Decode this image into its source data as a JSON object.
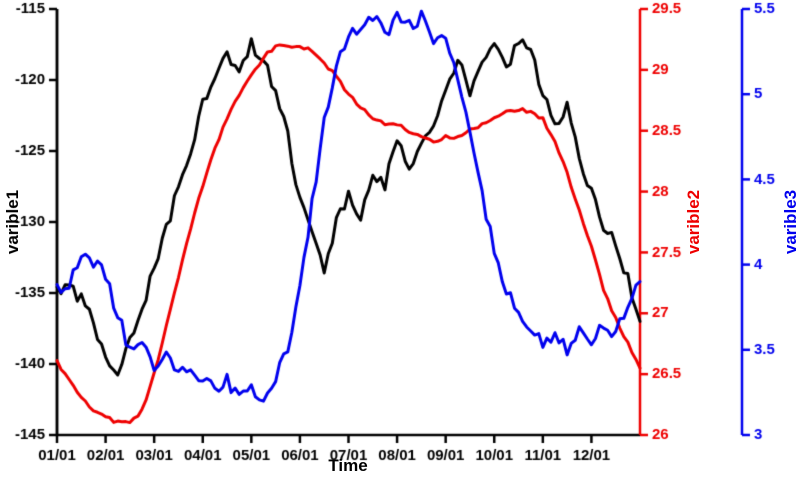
{
  "labels": {
    "y_left": "varible1",
    "y_right1": "varible2",
    "y_right2": "varible3",
    "x": "Time"
  },
  "chart_data": {
    "type": "line",
    "title": "",
    "xlabel": "Time",
    "x_ticks": [
      "01/01",
      "02/01",
      "03/01",
      "04/01",
      "05/01",
      "06/01",
      "07/01",
      "08/01",
      "09/01",
      "10/01",
      "11/01",
      "12/01"
    ],
    "x_range_months": [
      0,
      12
    ],
    "grid": false,
    "legend": "none",
    "series": [
      {
        "name": "varible1",
        "axis": "left",
        "color": "#000000",
        "linewidth": 3,
        "ylim": [
          -145,
          -115
        ],
        "tick_labels": [
          "-145",
          "-140",
          "-135",
          "-130",
          "-125",
          "-120",
          "-115"
        ],
        "tick_values": [
          -145,
          -140,
          -135,
          -130,
          -125,
          -120,
          -115
        ],
        "noise": 0.45,
        "values": [
          -135.0,
          -134.5,
          -135.5,
          -137.0,
          -139.5,
          -140.5,
          -138.0,
          -136.5,
          -133.0,
          -130.5,
          -127.5,
          -125.5,
          -121.5,
          -120.0,
          -118.0,
          -119.5,
          -117.5,
          -118.5,
          -121.0,
          -124.0,
          -128.5,
          -131.0,
          -133.5,
          -130.0,
          -128.0,
          -129.5,
          -126.5,
          -127.5,
          -124.0,
          -126.0,
          -124.5,
          -123.0,
          -120.5,
          -118.5,
          -121.0,
          -119.0,
          -117.5,
          -119.5,
          -117.0,
          -118.0,
          -121.0,
          -123.0,
          -122.0,
          -125.5,
          -128.0,
          -130.5,
          -131.5,
          -134.0,
          -137.0
        ]
      },
      {
        "name": "varible2",
        "axis": "right1",
        "color": "#ee0000",
        "linewidth": 3,
        "ylim": [
          26,
          29.5
        ],
        "tick_labels": [
          "26",
          "26.5",
          "27",
          "27.5",
          "28",
          "28.5",
          "29",
          "29.5"
        ],
        "tick_values": [
          26,
          26.5,
          27,
          27.5,
          28,
          28.5,
          29,
          29.5
        ],
        "noise": 0.015,
        "values": [
          26.6,
          26.45,
          26.3,
          26.2,
          26.15,
          26.1,
          26.1,
          26.2,
          26.5,
          26.9,
          27.3,
          27.7,
          28.05,
          28.35,
          28.6,
          28.8,
          28.95,
          29.1,
          29.2,
          29.2,
          29.2,
          29.15,
          29.05,
          28.95,
          28.8,
          28.7,
          28.6,
          28.55,
          28.55,
          28.5,
          28.45,
          28.4,
          28.45,
          28.45,
          28.5,
          28.55,
          28.6,
          28.65,
          28.68,
          28.65,
          28.6,
          28.4,
          28.15,
          27.85,
          27.55,
          27.2,
          26.95,
          26.75,
          26.55
        ]
      },
      {
        "name": "varible3",
        "axis": "right2",
        "color": "#0000ee",
        "linewidth": 3,
        "ylim": [
          3,
          5.5
        ],
        "tick_labels": [
          "3",
          "3.5",
          "4",
          "4.5",
          "5",
          "5.5"
        ],
        "tick_values": [
          3,
          3.5,
          4,
          4.5,
          5,
          5.5
        ],
        "noise": 0.04,
        "values": [
          3.85,
          3.9,
          4.05,
          4.0,
          3.95,
          3.7,
          3.5,
          3.55,
          3.4,
          3.45,
          3.35,
          3.4,
          3.3,
          3.28,
          3.32,
          3.22,
          3.28,
          3.2,
          3.35,
          3.5,
          3.85,
          4.35,
          4.85,
          5.15,
          5.35,
          5.4,
          5.45,
          5.35,
          5.45,
          5.4,
          5.45,
          5.3,
          5.35,
          5.1,
          4.75,
          4.4,
          4.1,
          3.85,
          3.7,
          3.6,
          3.55,
          3.6,
          3.5,
          3.6,
          3.55,
          3.65,
          3.6,
          3.75,
          3.9
        ]
      }
    ]
  }
}
